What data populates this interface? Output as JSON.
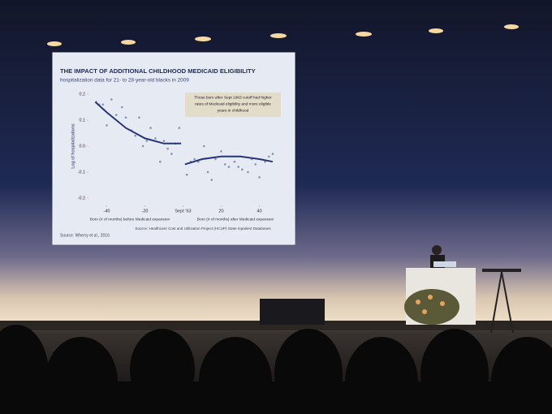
{
  "chart_data": {
    "type": "scatter",
    "title": "THE IMPACT OF ADDITIONAL CHILDHOOD MEDICAID ELIGIBILITY",
    "subtitle": "hospitalization data for 21- to 28-year-old blacks in 2009",
    "annotation": [
      "Those born after Sept 1963 cutoff had higher",
      "rates of Medicaid eligibility and more eligible",
      "years in childhood"
    ],
    "y_label": "Log of hospitalizations",
    "x_labels": [
      "Born (# of months) before Medicaid expansion",
      "Born (# of months) after Medicaid expansion"
    ],
    "source": "Source: Healthcare Cost and Utilization Project (HCUP) State Inpatient Databases",
    "citation": "Source: Wherry et al., 2016",
    "xlim": [
      -50,
      50
    ],
    "ylim": [
      -0.2,
      0.2
    ],
    "xticks": [
      -40,
      -20,
      {
        "value": 0,
        "label": "Sept '63"
      },
      20,
      40
    ],
    "yticks": [
      0.2,
      0.1,
      {
        "value": 0,
        "label": "0.0"
      },
      -0.1,
      -0.2
    ],
    "grid": false,
    "series": [
      {
        "mode": "markers",
        "color": "#8a93a8",
        "x": [
          -45.5,
          -44,
          -42,
          -40,
          -37.5,
          -35,
          -32,
          -30,
          -27,
          -25,
          -23,
          -21,
          -19,
          -17,
          -14.5,
          -12,
          -10,
          -8,
          -6,
          -4,
          -2
        ],
        "values": [
          0.17,
          0.16,
          0.16,
          0.08,
          0.18,
          0.12,
          0.15,
          0.11,
          0.06,
          0.04,
          0.11,
          0.0,
          0.02,
          0.07,
          0.03,
          -0.06,
          0.02,
          -0.01,
          -0.03,
          0.01,
          0.07
        ]
      },
      {
        "mode": "markers",
        "color": "#8a93a8",
        "x": [
          2,
          4,
          6,
          8,
          11,
          13,
          15,
          17,
          20,
          22,
          24,
          27,
          29,
          31,
          34,
          36,
          38,
          40,
          43,
          45,
          47
        ],
        "values": [
          -0.11,
          -0.06,
          -0.05,
          -0.06,
          0.0,
          -0.1,
          -0.13,
          -0.05,
          -0.02,
          -0.07,
          -0.08,
          -0.06,
          -0.08,
          -0.09,
          -0.1,
          -0.05,
          -0.07,
          -0.12,
          -0.06,
          -0.04,
          -0.03
        ]
      },
      {
        "mode": "line",
        "color": "#26347a",
        "x": [
          -46,
          -40,
          -30,
          -20,
          -10,
          -1
        ],
        "values": [
          0.17,
          0.13,
          0.07,
          0.03,
          0.01,
          0.01
        ]
      },
      {
        "mode": "line",
        "color": "#26347a",
        "x": [
          1,
          10,
          20,
          30,
          40,
          47
        ],
        "values": [
          -0.07,
          -0.05,
          -0.04,
          -0.04,
          -0.05,
          -0.06
        ]
      }
    ]
  }
}
